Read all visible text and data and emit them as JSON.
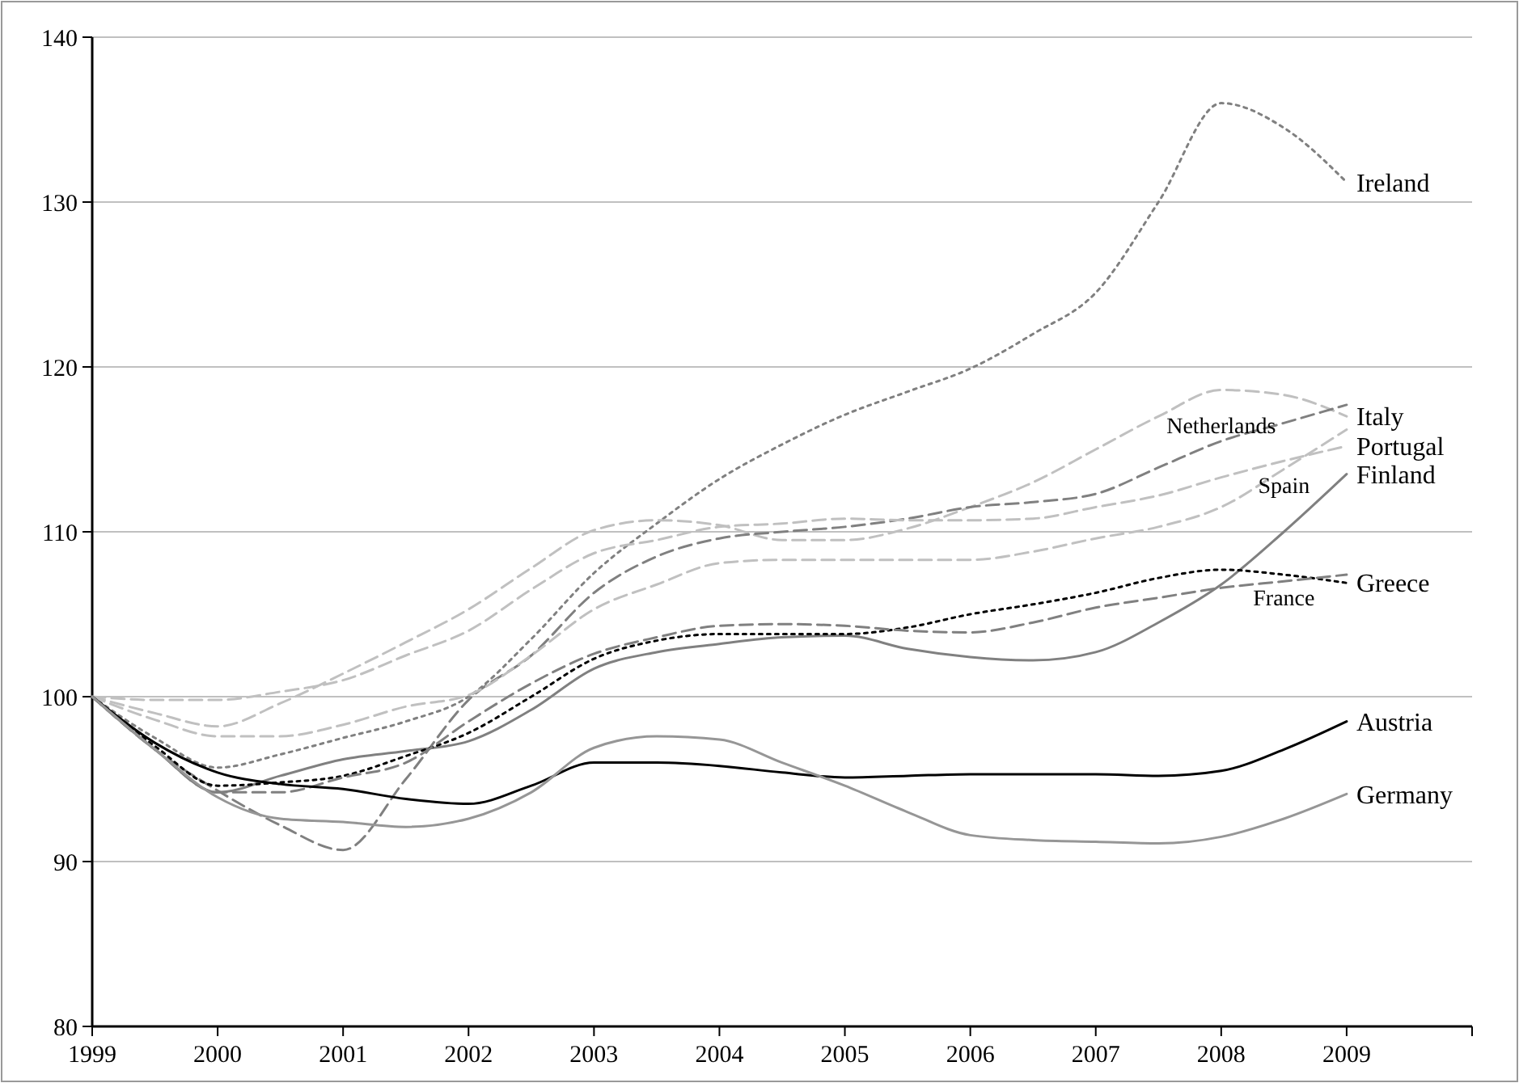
{
  "chart_data": {
    "type": "line",
    "x": [
      1999,
      1999.5,
      2000,
      2000.5,
      2001,
      2001.5,
      2002,
      2002.5,
      2003,
      2003.5,
      2004,
      2004.5,
      2005,
      2005.5,
      2006,
      2006.5,
      2007,
      2007.5,
      2008,
      2008.5,
      2009
    ],
    "series": [
      {
        "name": "Ireland",
        "color": "#808080",
        "line_style": "dotted",
        "values": [
          100,
          97.5,
          95.7,
          96.5,
          97.5,
          98.5,
          100,
          103.5,
          107.5,
          110.5,
          113.2,
          115.3,
          117.1,
          118.5,
          119.9,
          122,
          124.5,
          130,
          136,
          134.5,
          131.2
        ]
      },
      {
        "name": "Italy",
        "color": "#c0c0c0",
        "line_style": "dashed",
        "values": [
          100,
          99,
          98.2,
          99.6,
          101.4,
          103.3,
          105.3,
          107.8,
          110.1,
          110.7,
          110.4,
          109.5,
          109.5,
          110.2,
          111.5,
          113,
          115,
          117,
          118.6,
          118.3,
          117
        ]
      },
      {
        "name": "Netherlands",
        "color": "#808080",
        "line_style": "dashed",
        "values": [
          100,
          96.8,
          94.3,
          92.2,
          90.7,
          95,
          99.8,
          102.5,
          106.3,
          108.5,
          109.6,
          110,
          110.3,
          110.8,
          111.5,
          111.8,
          112.3,
          113.9,
          115.5,
          116.6,
          117.7
        ]
      },
      {
        "name": "Spain",
        "color": "#c0c0c0",
        "line_style": "dashed",
        "values": [
          100,
          98.6,
          97.6,
          97.6,
          98.3,
          99.4,
          100.1,
          102.5,
          105.3,
          106.8,
          108.1,
          108.3,
          108.3,
          108.3,
          108.3,
          108.8,
          109.6,
          110.3,
          111.5,
          113.8,
          116.2
        ]
      },
      {
        "name": "Portugal",
        "color": "#c0c0c0",
        "line_style": "dashed",
        "values": [
          100,
          99.8,
          99.8,
          100.3,
          101,
          102.5,
          104,
          106.5,
          108.7,
          109.5,
          110.3,
          110.5,
          110.8,
          110.7,
          110.7,
          110.8,
          111.5,
          112.2,
          113.3,
          114.3,
          115.2
        ]
      },
      {
        "name": "Finland",
        "color": "#808080",
        "line_style": "solid",
        "values": [
          100,
          96.8,
          94.2,
          95.2,
          96.2,
          96.7,
          97.3,
          99.2,
          101.7,
          102.7,
          103.2,
          103.6,
          103.7,
          102.9,
          102.4,
          102.2,
          102.7,
          104.5,
          106.8,
          110,
          113.5
        ]
      },
      {
        "name": "Greece",
        "color": "#000000",
        "line_style": "dotted",
        "values": [
          100,
          97,
          94.6,
          94.8,
          95.2,
          96.4,
          97.8,
          100,
          102.3,
          103.4,
          103.8,
          103.8,
          103.8,
          104.2,
          105,
          105.6,
          106.3,
          107.2,
          107.7,
          107.4,
          106.9
        ]
      },
      {
        "name": "France",
        "color": "#808080",
        "line_style": "dashed",
        "values": [
          100,
          96.8,
          94.2,
          94.2,
          95.1,
          96,
          98.5,
          100.8,
          102.6,
          103.6,
          104.3,
          104.4,
          104.3,
          104,
          103.9,
          104.5,
          105.4,
          106,
          106.6,
          107,
          107.4
        ]
      },
      {
        "name": "Austria",
        "color": "#000000",
        "line_style": "solid",
        "values": [
          100,
          97.2,
          95.4,
          94.7,
          94.4,
          93.8,
          93.5,
          94.6,
          96,
          96,
          95.8,
          95.4,
          95.1,
          95.2,
          95.3,
          95.3,
          95.3,
          95.2,
          95.5,
          96.8,
          98.5
        ]
      },
      {
        "name": "Germany",
        "color": "#969696",
        "line_style": "solid",
        "values": [
          100,
          96.8,
          93.9,
          92.6,
          92.4,
          92.1,
          92.6,
          94.2,
          96.9,
          97.6,
          97.4,
          96,
          94.6,
          93,
          91.6,
          91.3,
          91.2,
          91.1,
          91.5,
          92.6,
          94.1
        ]
      }
    ],
    "xlim": [
      1999,
      2010
    ],
    "xticks": [
      1999,
      2000,
      2001,
      2002,
      2003,
      2004,
      2005,
      2006,
      2007,
      2008,
      2009,
      {
        "value": 2010,
        "label": null
      }
    ],
    "ylim": [
      80,
      140
    ],
    "yticks": [
      80,
      90,
      100,
      110,
      120,
      130,
      140
    ],
    "grid": "y",
    "marker": "none"
  }
}
